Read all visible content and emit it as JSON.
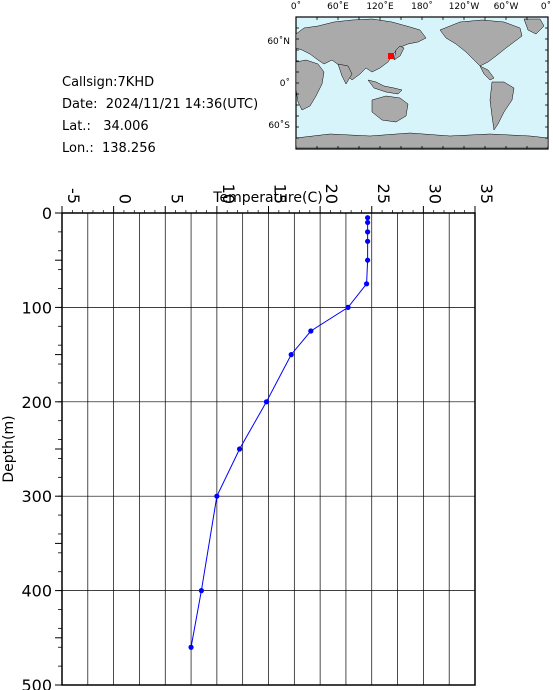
{
  "info": {
    "callsign": "Callsign:7KHD",
    "date": "Date:  2024/11/21 14:36(UTC)",
    "lat": "Lat.:   34.006",
    "lon": "Lon.:  138.256"
  },
  "map": {
    "top_labels": [
      "0˚",
      "60˚E",
      "120˚E",
      "180˚",
      "120˚W",
      "60˚W",
      "0˚"
    ],
    "left_labels": [
      "60˚N",
      "0˚",
      "60˚S"
    ],
    "ocean_color": "#d8f4fb",
    "land_color": "#aaaaaa",
    "marker_color": "#ff0000"
  },
  "chart_data": {
    "type": "line",
    "title": "",
    "xlabel": "Temperature(C)",
    "ylabel": "Depth(m)",
    "xlim": [
      -5,
      35
    ],
    "ylim": [
      0,
      500
    ],
    "y_inverted": true,
    "x_ticks": [
      "-5",
      "0",
      "5",
      "10",
      "15",
      "20",
      "25",
      "30",
      "35"
    ],
    "y_ticks": [
      "0",
      "100",
      "200",
      "300",
      "400",
      "500"
    ],
    "grid": true,
    "line_color": "#0000ff",
    "x": [
      24.6,
      24.6,
      24.6,
      24.6,
      24.6,
      24.5,
      22.7,
      19.1,
      17.2,
      14.8,
      12.2,
      10.0,
      8.5,
      7.5
    ],
    "y": [
      5,
      10,
      20,
      30,
      50,
      75,
      100,
      125,
      150,
      200,
      250,
      300,
      400,
      460
    ]
  }
}
